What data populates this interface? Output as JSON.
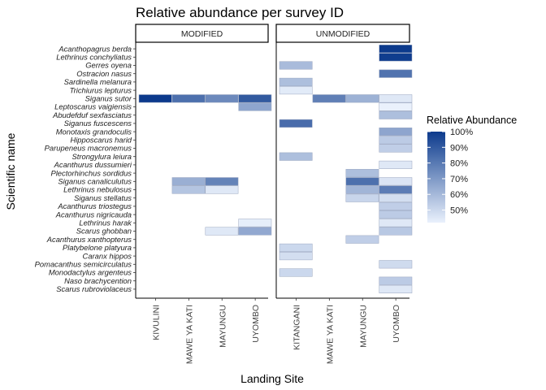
{
  "chart_data": {
    "type": "heatmap",
    "title": "Relative abundance per survey ID",
    "xlabel": "Landing Site",
    "ylabel": "Scientific name",
    "facets": [
      {
        "name": "MODIFIED",
        "sites": [
          "KIVULINI",
          "MAWE YA KATI",
          "MAYUNGU",
          "UYOMBO"
        ]
      },
      {
        "name": "UNMODIFIED",
        "sites": [
          "KITANGANI",
          "MAWE YA KATI",
          "MAYUNGU",
          "UYOMBO"
        ]
      }
    ],
    "species": [
      "Acanthopagrus berda",
      "Lethrinus conchyliatus",
      "Gerres oyena",
      "Ostracion nasus",
      "Sardinella melanura",
      "Trichiurus lepturus",
      "Siganus sutor",
      "Leptoscarus vaigiensis",
      "Abudefduf sexfasciatus",
      "Siganus fuscescens",
      "Monotaxis grandoculis",
      "Hipposcarus harid",
      "Parupeneus macronemus",
      "Strongylura leiura",
      "Acanthurus dussumieri",
      "Plectorhinchus sordidus",
      "Siganus canaliculutus",
      "Lethrinus nebulosus",
      "Siganus stellatus",
      "Acanthurus triostegus",
      "Acanthurus nigricauda",
      "Lethrinus harak",
      "Scarus ghobban",
      "Acanthurus xanthopterus",
      "Platybelone platyura",
      "Caranx hippos",
      "Pomacanthus semicirculatus",
      "Monodactylus argenteus",
      "Naso brachycention",
      "Scarus rubroviolaceus"
    ],
    "cells": [
      {
        "facet": "MODIFIED",
        "site": "KIVULINI",
        "species": "Siganus sutor",
        "value": 100
      },
      {
        "facet": "MODIFIED",
        "site": "MAWE YA KATI",
        "species": "Siganus sutor",
        "value": 83
      },
      {
        "facet": "MODIFIED",
        "site": "MAWE YA KATI",
        "species": "Siganus canaliculutus",
        "value": 63
      },
      {
        "facet": "MODIFIED",
        "site": "MAWE YA KATI",
        "species": "Lethrinus nebulosus",
        "value": 56
      },
      {
        "facet": "MODIFIED",
        "site": "MAYUNGU",
        "species": "Siganus sutor",
        "value": 75
      },
      {
        "facet": "MODIFIED",
        "site": "MAYUNGU",
        "species": "Siganus canaliculutus",
        "value": 77
      },
      {
        "facet": "MODIFIED",
        "site": "MAYUNGU",
        "species": "Lethrinus nebulosus",
        "value": 45
      },
      {
        "facet": "MODIFIED",
        "site": "MAYUNGU",
        "species": "Scarus ghobban",
        "value": 45
      },
      {
        "facet": "MODIFIED",
        "site": "UYOMBO",
        "species": "Siganus sutor",
        "value": 90
      },
      {
        "facet": "MODIFIED",
        "site": "UYOMBO",
        "species": "Leptoscarus vaigiensis",
        "value": 66
      },
      {
        "facet": "MODIFIED",
        "site": "UYOMBO",
        "species": "Lethrinus harak",
        "value": 43
      },
      {
        "facet": "MODIFIED",
        "site": "UYOMBO",
        "species": "Scarus ghobban",
        "value": 65
      },
      {
        "facet": "UNMODIFIED",
        "site": "KITANGANI",
        "species": "Gerres oyena",
        "value": 59
      },
      {
        "facet": "UNMODIFIED",
        "site": "KITANGANI",
        "species": "Sardinella melanura",
        "value": 58
      },
      {
        "facet": "UNMODIFIED",
        "site": "KITANGANI",
        "species": "Trichiurus lepturus",
        "value": 44
      },
      {
        "facet": "UNMODIFIED",
        "site": "KITANGANI",
        "species": "Siganus fuscescens",
        "value": 84
      },
      {
        "facet": "UNMODIFIED",
        "site": "KITANGANI",
        "species": "Strongylura leiura",
        "value": 58
      },
      {
        "facet": "UNMODIFIED",
        "site": "KITANGANI",
        "species": "Platybelone platyura",
        "value": 50
      },
      {
        "facet": "UNMODIFIED",
        "site": "KITANGANI",
        "species": "Caranx hippos",
        "value": 48
      },
      {
        "facet": "UNMODIFIED",
        "site": "KITANGANI",
        "species": "Monodactylus argenteus",
        "value": 50
      },
      {
        "facet": "UNMODIFIED",
        "site": "MAWE YA KATI",
        "species": "Siganus sutor",
        "value": 78
      },
      {
        "facet": "UNMODIFIED",
        "site": "MAYUNGU",
        "species": "Siganus sutor",
        "value": 62
      },
      {
        "facet": "UNMODIFIED",
        "site": "MAYUNGU",
        "species": "Plectorhinchus sordidus",
        "value": 58
      },
      {
        "facet": "UNMODIFIED",
        "site": "MAYUNGU",
        "species": "Siganus canaliculutus",
        "value": 83
      },
      {
        "facet": "UNMODIFIED",
        "site": "MAYUNGU",
        "species": "Lethrinus nebulosus",
        "value": 61
      },
      {
        "facet": "UNMODIFIED",
        "site": "MAYUNGU",
        "species": "Siganus stellatus",
        "value": 51
      },
      {
        "facet": "UNMODIFIED",
        "site": "MAYUNGU",
        "species": "Acanthurus xanthopterus",
        "value": 53
      },
      {
        "facet": "UNMODIFIED",
        "site": "UYOMBO",
        "species": "Acanthopagrus berda",
        "value": 100
      },
      {
        "facet": "UNMODIFIED",
        "site": "UYOMBO",
        "species": "Lethrinus conchyliatus",
        "value": 99
      },
      {
        "facet": "UNMODIFIED",
        "site": "UYOMBO",
        "species": "Ostracion nasus",
        "value": 82
      },
      {
        "facet": "UNMODIFIED",
        "site": "UYOMBO",
        "species": "Siganus sutor",
        "value": 45
      },
      {
        "facet": "UNMODIFIED",
        "site": "UYOMBO",
        "species": "Leptoscarus vaigiensis",
        "value": 42
      },
      {
        "facet": "UNMODIFIED",
        "site": "UYOMBO",
        "species": "Abudefduf sexfasciatus",
        "value": 58
      },
      {
        "facet": "UNMODIFIED",
        "site": "UYOMBO",
        "species": "Monotaxis grandoculis",
        "value": 66
      },
      {
        "facet": "UNMODIFIED",
        "site": "UYOMBO",
        "species": "Hipposcarus harid",
        "value": 54
      },
      {
        "facet": "UNMODIFIED",
        "site": "UYOMBO",
        "species": "Parupeneus macronemus",
        "value": 53
      },
      {
        "facet": "UNMODIFIED",
        "site": "UYOMBO",
        "species": "Acanthurus dussumieri",
        "value": 45
      },
      {
        "facet": "UNMODIFIED",
        "site": "UYOMBO",
        "species": "Siganus canaliculutus",
        "value": 46
      },
      {
        "facet": "UNMODIFIED",
        "site": "UYOMBO",
        "species": "Lethrinus nebulosus",
        "value": 79
      },
      {
        "facet": "UNMODIFIED",
        "site": "UYOMBO",
        "species": "Siganus stellatus",
        "value": 48
      },
      {
        "facet": "UNMODIFIED",
        "site": "UYOMBO",
        "species": "Acanthurus triostegus",
        "value": 53
      },
      {
        "facet": "UNMODIFIED",
        "site": "UYOMBO",
        "species": "Acanthurus nigricauda",
        "value": 54
      },
      {
        "facet": "UNMODIFIED",
        "site": "UYOMBO",
        "species": "Lethrinus harak",
        "value": 45
      },
      {
        "facet": "UNMODIFIED",
        "site": "UYOMBO",
        "species": "Scarus ghobban",
        "value": 55
      },
      {
        "facet": "UNMODIFIED",
        "site": "UYOMBO",
        "species": "Pomacanthus semicirculatus",
        "value": 49
      },
      {
        "facet": "UNMODIFIED",
        "site": "UYOMBO",
        "species": "Naso brachycention",
        "value": 54
      },
      {
        "facet": "UNMODIFIED",
        "site": "UYOMBO",
        "species": "Scarus rubroviolaceus",
        "value": 45
      }
    ],
    "legend": {
      "title": "Relative Abundance",
      "ticks": [
        "100%",
        "90%",
        "80%",
        "70%",
        "60%",
        "50%"
      ],
      "tick_values": [
        100,
        90,
        80,
        70,
        60,
        50
      ],
      "range": [
        42,
        100
      ],
      "low_color": "#eaf1fc",
      "high_color": "#0c3a8c",
      "placement": "right"
    },
    "grid": false
  }
}
